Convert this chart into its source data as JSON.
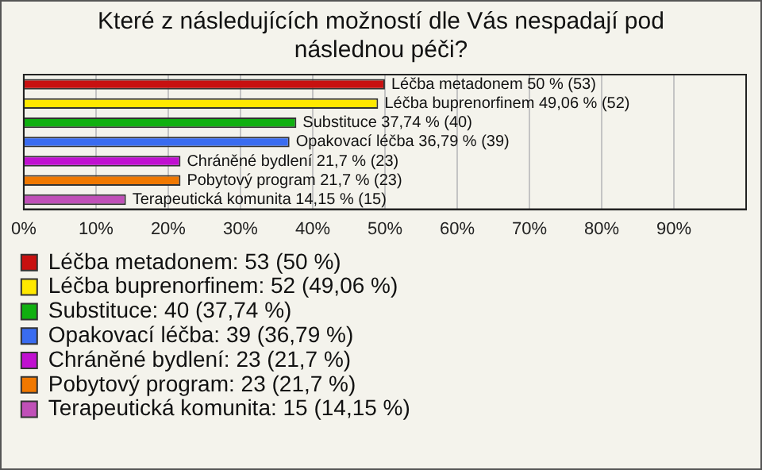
{
  "chart_data": {
    "type": "bar",
    "orientation": "horizontal",
    "title": "Které z následujících možností dle Vás nespadají pod následnou péči?",
    "categories": [
      null,
      null,
      null,
      null,
      null,
      null,
      null
    ],
    "series": [
      {
        "name": "Léčba metadonem: 53 (50 %)",
        "color": "#c81010",
        "values": [
          50,
          null,
          null,
          null,
          null,
          null,
          null
        ],
        "value_labels": [
          "Léčba metadonem 50 % (53)",
          null,
          null,
          null,
          null,
          null,
          null
        ]
      },
      {
        "name": "Léčba buprenorfinem: 52 (49,06 %)",
        "color": "#ffe800",
        "values": [
          null,
          49.06,
          null,
          null,
          null,
          null,
          null
        ],
        "value_labels": [
          null,
          "Léčba buprenorfinem 49,06 % (52)",
          null,
          null,
          null,
          null,
          null
        ]
      },
      {
        "name": "Substituce: 40 (37,74 %)",
        "color": "#10b010",
        "values": [
          null,
          null,
          37.74,
          null,
          null,
          null,
          null
        ],
        "value_labels": [
          null,
          null,
          "Substituce 37,74 % (40)",
          null,
          null,
          null,
          null
        ]
      },
      {
        "name": "Opakovací léčba: 39 (36,79 %)",
        "color": "#3a6cf0",
        "values": [
          null,
          null,
          null,
          36.79,
          null,
          null,
          null
        ],
        "value_labels": [
          null,
          null,
          null,
          "Opakovací léčba 36,79 % (39)",
          null,
          null,
          null
        ]
      },
      {
        "name": "Chráněné bydlení: 23 (21,7 %)",
        "color": "#c010d0",
        "values": [
          null,
          null,
          null,
          null,
          21.7,
          null,
          null
        ],
        "value_labels": [
          null,
          null,
          null,
          null,
          "Chráněné bydlení 21,7 % (23)",
          null,
          null
        ]
      },
      {
        "name": "Pobytový program: 23 (21,7 %)",
        "color": "#f07800",
        "values": [
          null,
          null,
          null,
          null,
          null,
          21.7,
          null
        ],
        "value_labels": [
          null,
          null,
          null,
          null,
          null,
          "Pobytový program 21,7 % (23)",
          null
        ]
      },
      {
        "name": "Terapeutická komunita: 15 (14,15 %)",
        "color": "#c050b8",
        "values": [
          null,
          null,
          null,
          null,
          null,
          null,
          14.15
        ],
        "value_labels": [
          null,
          null,
          null,
          null,
          null,
          null,
          "Terapeutická komunita 14,15 % (15)"
        ]
      }
    ],
    "xlim": [
      0,
      100
    ],
    "xticks": [
      {
        "value": 0,
        "label": "0%"
      },
      {
        "value": 10,
        "label": "10%"
      },
      {
        "value": 20,
        "label": "20%"
      },
      {
        "value": 30,
        "label": "30%"
      },
      {
        "value": 40,
        "label": "40%"
      },
      {
        "value": 50,
        "label": "50%"
      },
      {
        "value": 60,
        "label": "60%"
      },
      {
        "value": 70,
        "label": "70%"
      },
      {
        "value": 80,
        "label": "80%"
      },
      {
        "value": 90,
        "label": "90%"
      }
    ],
    "grid": "x",
    "tick_labels": "x",
    "legend": "bottom"
  }
}
